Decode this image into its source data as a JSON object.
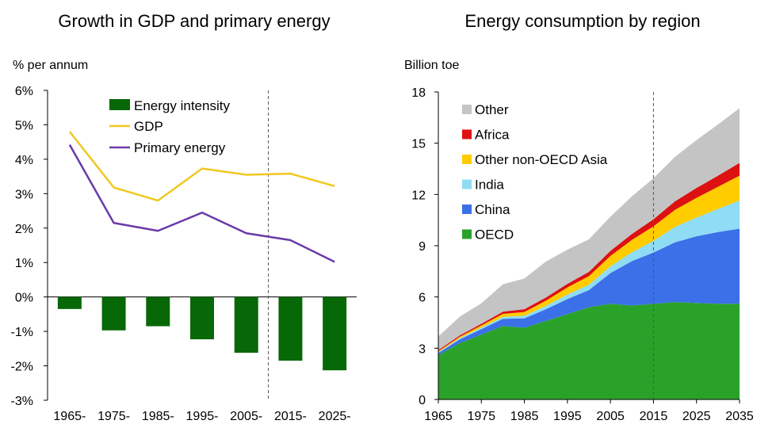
{
  "colors": {
    "energy_intensity": "#076807",
    "gdp": "#f0c81e",
    "primary_energy": "#6a3aa8",
    "oecd": "#2aa22a",
    "china": "#3b70e8",
    "india": "#8fdcf5",
    "other_non_oecd_asia": "#ffcc00",
    "africa": "#dd1111",
    "other": "#c4c4c4"
  },
  "chart_data": [
    {
      "type": "bar+line",
      "title": "Growth in GDP and primary energy",
      "ylabel": "% per annum",
      "ylim": [
        -3,
        6
      ],
      "yticks": [
        "6%",
        "5%",
        "4%",
        "3%",
        "2%",
        "1%",
        "0%",
        "-1%",
        "-2%",
        "-3%"
      ],
      "categories": [
        "1965-",
        "1975-",
        "1985-",
        "1995-",
        "2005-",
        "2015-",
        "2025-"
      ],
      "divider_after_index": 4,
      "series": [
        {
          "name": "Energy intensity",
          "kind": "bar",
          "color_key": "energy_intensity",
          "values": [
            -0.35,
            -0.97,
            -0.85,
            -1.23,
            -1.62,
            -1.85,
            -2.13
          ]
        },
        {
          "name": "GDP",
          "kind": "line",
          "color_key": "gdp",
          "values": [
            4.8,
            3.18,
            2.8,
            3.73,
            3.55,
            3.58,
            3.22
          ]
        },
        {
          "name": "Primary energy",
          "kind": "line",
          "color_key": "primary_energy",
          "values": [
            4.42,
            2.15,
            1.92,
            2.45,
            1.85,
            1.65,
            1.02
          ]
        }
      ],
      "legend": "top-right"
    },
    {
      "type": "area",
      "stacked": true,
      "title": "Energy consumption by region",
      "ylabel": "Billion toe",
      "ylim": [
        0,
        18
      ],
      "yticks": [
        "18",
        "15",
        "12",
        "9",
        "6",
        "3",
        "0"
      ],
      "xticks": [
        "1965",
        "1975",
        "1985",
        "1995",
        "2005",
        "2015",
        "2025",
        "2035"
      ],
      "xlim": [
        1965,
        2035
      ],
      "divider_x": 2015,
      "x": [
        1965,
        1970,
        1975,
        1980,
        1985,
        1990,
        1995,
        2000,
        2005,
        2010,
        2015,
        2020,
        2025,
        2030,
        2035
      ],
      "series": [
        {
          "name": "OECD",
          "color_key": "oecd",
          "values": [
            2.6,
            3.3,
            3.8,
            4.3,
            4.2,
            4.6,
            5.0,
            5.4,
            5.6,
            5.5,
            5.6,
            5.7,
            5.65,
            5.6,
            5.6
          ]
        },
        {
          "name": "China",
          "color_key": "china",
          "values": [
            0.12,
            0.22,
            0.32,
            0.42,
            0.55,
            0.68,
            0.88,
            1.0,
            1.8,
            2.6,
            3.0,
            3.5,
            3.9,
            4.2,
            4.4
          ]
        },
        {
          "name": "India",
          "color_key": "india",
          "values": [
            0.05,
            0.07,
            0.09,
            0.11,
            0.15,
            0.2,
            0.26,
            0.32,
            0.4,
            0.52,
            0.68,
            0.9,
            1.1,
            1.35,
            1.65
          ]
        },
        {
          "name": "Other non-OECD Asia",
          "color_key": "other_non_oecd_asia",
          "values": [
            0.05,
            0.08,
            0.12,
            0.18,
            0.22,
            0.3,
            0.42,
            0.5,
            0.6,
            0.72,
            0.85,
            1.0,
            1.15,
            1.3,
            1.45
          ]
        },
        {
          "name": "Africa",
          "color_key": "africa",
          "values": [
            0.07,
            0.08,
            0.1,
            0.13,
            0.16,
            0.19,
            0.21,
            0.25,
            0.3,
            0.35,
            0.42,
            0.5,
            0.58,
            0.65,
            0.75
          ]
        },
        {
          "name": "Other",
          "color_key": "other",
          "values": [
            0.8,
            1.1,
            1.2,
            1.6,
            1.8,
            2.1,
            2.0,
            1.9,
            2.0,
            2.2,
            2.4,
            2.6,
            2.8,
            3.0,
            3.2
          ]
        }
      ],
      "legend": "top-left"
    }
  ]
}
